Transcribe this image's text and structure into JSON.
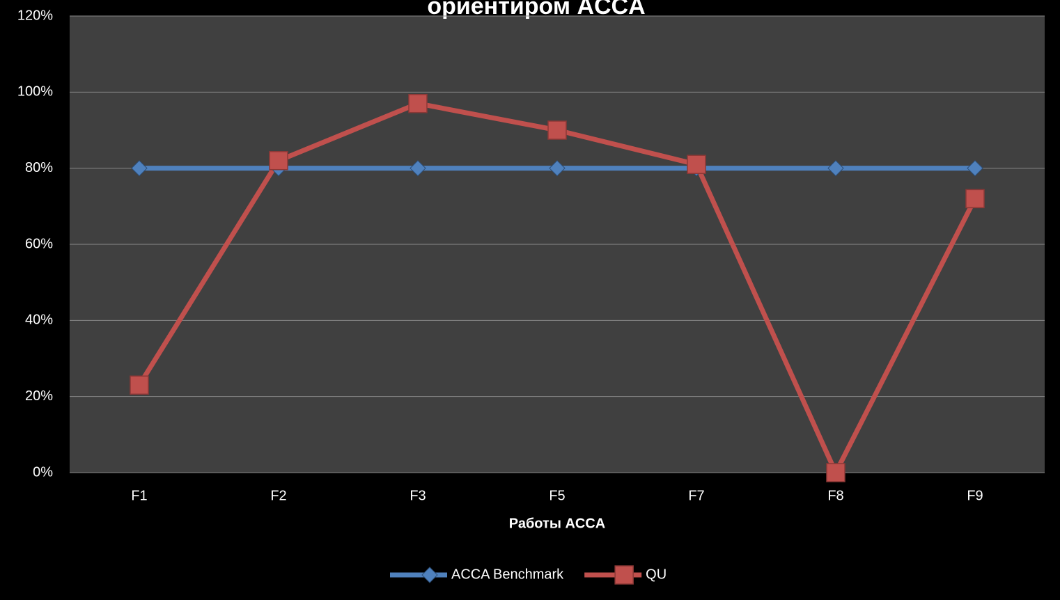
{
  "chart_data": {
    "type": "line",
    "title": "ориентиром ACCA",
    "x_label": "Работы ACCA",
    "categories": [
      "F1",
      "F2",
      "F3",
      "F5",
      "F7",
      "F8",
      "F9"
    ],
    "series": [
      {
        "name": "ACCA Benchmark",
        "color": "#4f81bd",
        "marker": "diamond",
        "values": [
          80,
          80,
          80,
          80,
          80,
          80,
          80
        ]
      },
      {
        "name": "QU",
        "color": "#c0504d",
        "marker": "square",
        "values": [
          23,
          82,
          97,
          90,
          81,
          0,
          72
        ]
      }
    ],
    "ylim": [
      0,
      120
    ],
    "yticks": [
      {
        "value": 0,
        "label": "0%"
      },
      {
        "value": 20,
        "label": "20%"
      },
      {
        "value": 40,
        "label": "40%"
      },
      {
        "value": 60,
        "label": "60%"
      },
      {
        "value": 80,
        "label": "80%"
      },
      {
        "value": 100,
        "label": "100%"
      },
      {
        "value": 120,
        "label": "120%"
      }
    ],
    "grid": true,
    "legend": "bottom"
  }
}
